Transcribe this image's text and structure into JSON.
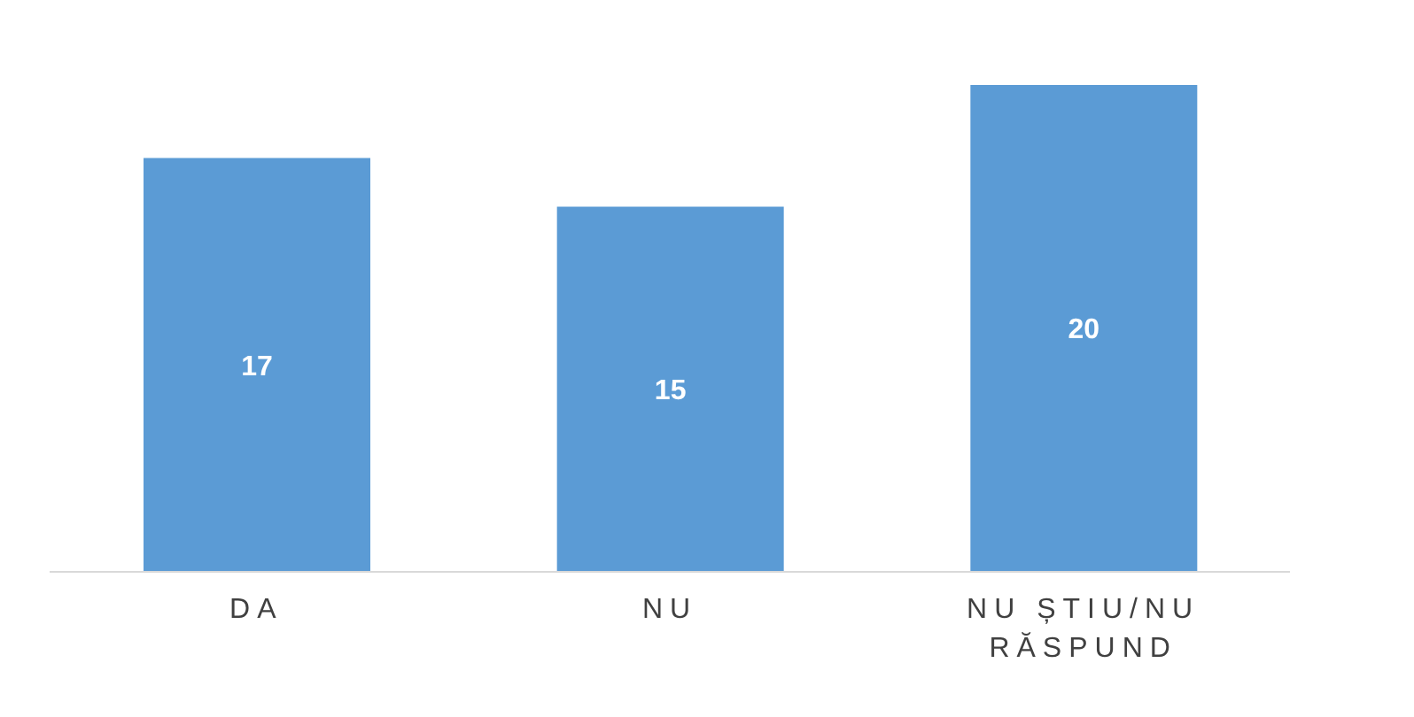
{
  "chart_data": {
    "type": "bar",
    "categories": [
      "DA",
      "NU",
      "NU ȘTIU/NU RĂSPUND"
    ],
    "values": [
      17,
      15,
      20
    ],
    "color": "#5b9bd5",
    "data_labels": true
  }
}
